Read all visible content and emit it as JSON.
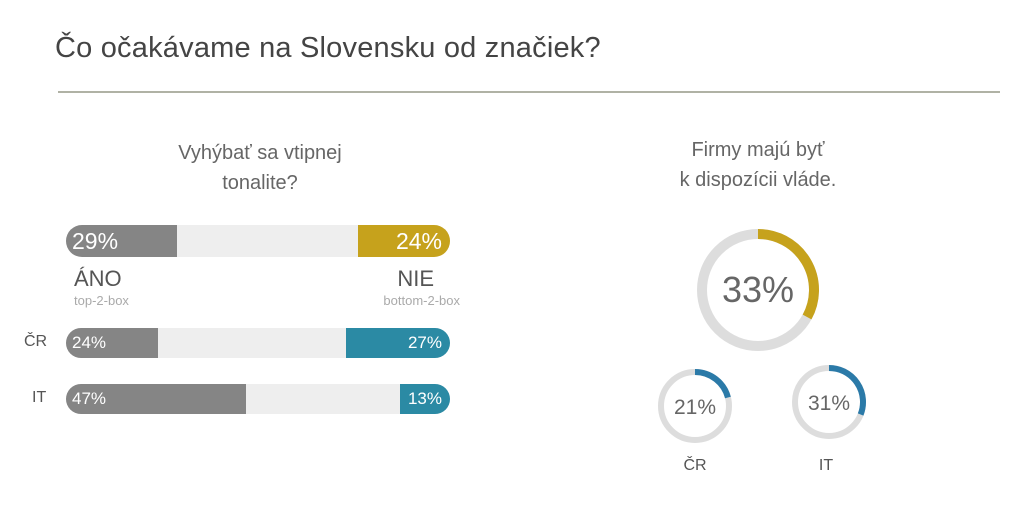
{
  "title": "Čo očakávame na Slovensku od značiek?",
  "chart_data": [
    {
      "type": "bar",
      "title": "Vyhýbať sa vtipnej tonalite?",
      "title_lines": [
        "Vyhýbať sa vtipnej",
        "tonalite?"
      ],
      "labels": {
        "yes": "ÁNO",
        "yes_sub": "top-2-box",
        "no": "NIE",
        "no_sub": "bottom-2-box"
      },
      "rows": [
        {
          "name": "",
          "yes": 29,
          "no": 24,
          "yes_label": "29%",
          "no_label": "24%",
          "no_color": "#c6a21c"
        },
        {
          "name": "ČR",
          "yes": 24,
          "no": 27,
          "yes_label": "24%",
          "no_label": "27%",
          "no_color": "#2b8aa4"
        },
        {
          "name": "IT",
          "yes": 47,
          "no": 13,
          "yes_label": "47%",
          "no_label": "13%",
          "no_color": "#2b8aa4"
        }
      ],
      "yes_color": "#858585",
      "track_color": "#eeeeee",
      "scale_max": 100
    },
    {
      "type": "pie",
      "title": "Firmy majú byť k dispozícii vláde.",
      "title_lines": [
        "Firmy majú byť",
        "k dispozícii vláde."
      ],
      "rings": [
        {
          "name": "",
          "value": 33,
          "label": "33%",
          "color": "#c6a21c"
        },
        {
          "name": "ČR",
          "value": 21,
          "label": "21%",
          "color": "#2b7aa8"
        },
        {
          "name": "IT",
          "value": 31,
          "label": "31%",
          "color": "#2b7aa8"
        }
      ],
      "track_color": "#dddddd"
    }
  ]
}
